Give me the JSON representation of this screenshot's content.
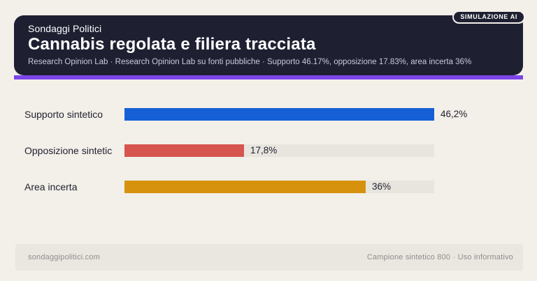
{
  "badge": {
    "label": "SIMULAZIONE AI"
  },
  "header": {
    "brand": "Sondaggi Politici",
    "title": "Cannabis regolata e filiera tracciata",
    "subtitle": "Research Opinion Lab · Research Opinion Lab su fonti pubbliche · Supporto 46.17%, opposizione 17.83%, area incerta 36%"
  },
  "chart_data": {
    "type": "bar",
    "orientation": "horizontal",
    "categories": [
      "Supporto sintetico",
      "Opposizione sintetic",
      "Area incerta"
    ],
    "values": [
      46.2,
      17.8,
      36
    ],
    "value_labels": [
      "46,2%",
      "17,8%",
      "36%"
    ],
    "bar_colors": [
      "#1560d6",
      "#d6554f",
      "#d6920c"
    ],
    "track_color": "#e8e5df",
    "xlim": [
      0,
      46.2
    ],
    "grid": false,
    "legend": false,
    "title": "Cannabis regolata e filiera tracciata",
    "xlabel": "",
    "ylabel": ""
  },
  "footer": {
    "left": "sondaggipolitici.com",
    "right": "Campione sintetico 800 · Uso informativo"
  },
  "colors": {
    "page_bg": "#f3efe9",
    "header_bg": "#1e2032",
    "accent": "#7c45ea",
    "track": "#e8e5df",
    "text_dark": "#20222f",
    "text_muted": "#8e8d8b",
    "subtitle": "#c9c9d8"
  }
}
